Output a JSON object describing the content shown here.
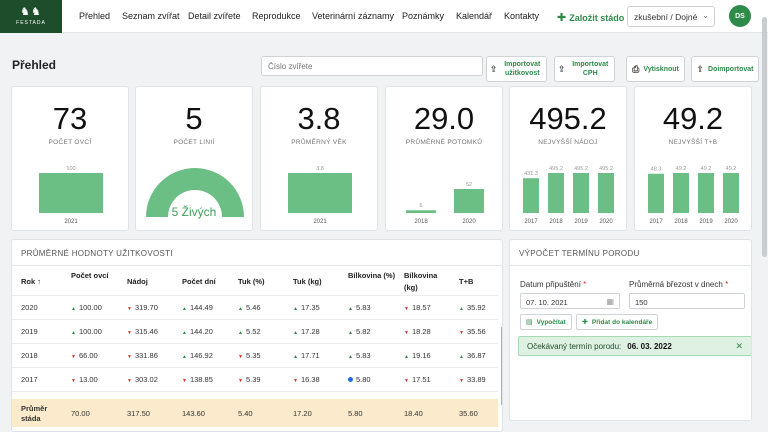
{
  "brand": {
    "name": "FESTADA"
  },
  "nav": {
    "items": [
      "Přehled",
      "Seznam zvířat",
      "Detail zvířete",
      "Reprodukce",
      "Veterinární záznamy",
      "Poznámky",
      "Kalendář",
      "Kontakty"
    ],
    "add_label": "Založit stádo",
    "herd_select": "zkušební / Dojné",
    "avatar": "DS"
  },
  "toolbar": {
    "title": "Přehled",
    "search_placeholder": "Číslo zvířete",
    "buttons": [
      "Importovat užitkovost",
      "Importovat CPH",
      "Vytisknout",
      "Doimportovat"
    ]
  },
  "kpis": [
    {
      "value": "73",
      "label": "POČET OVCÍ"
    },
    {
      "value": "5",
      "label": "POČET LINIÍ"
    },
    {
      "value": "3.8",
      "label": "PRŮMĚRNÝ VĚK"
    },
    {
      "value": "29.0",
      "label": "PRŮMĚRNÉ POTOMKŮ"
    },
    {
      "value": "495.2",
      "label": "NEJVYŠŠÍ NÁDOJ"
    },
    {
      "value": "49.2",
      "label": "NEJVYŠŠÍ T+B"
    }
  ],
  "gauge": {
    "text": "5 Živých",
    "fraction": 1.0
  },
  "chart_data": [
    {
      "type": "bar",
      "title": "",
      "categories": [
        "2021"
      ],
      "values": [
        100
      ],
      "ylim": [
        0,
        100
      ]
    },
    {
      "type": "bar",
      "title": "",
      "categories": [
        "2021"
      ],
      "values": [
        3.8
      ],
      "ylim": [
        0,
        3.8
      ]
    },
    {
      "type": "bar",
      "title": "",
      "categories": [
        "2018",
        "2020"
      ],
      "values": [
        6,
        52
      ],
      "ylim": [
        0,
        52
      ]
    },
    {
      "type": "bar",
      "title": "",
      "categories": [
        "2017",
        "2018",
        "2019",
        "2020"
      ],
      "values": [
        431.3,
        495.2,
        495.2,
        495.2
      ],
      "ylim": [
        0,
        495.2
      ]
    },
    {
      "type": "bar",
      "title": "",
      "categories": [
        "2017",
        "2018",
        "2019",
        "2020"
      ],
      "values": [
        48.3,
        49.2,
        49.2,
        49.2
      ],
      "ylim": [
        0,
        49.2
      ]
    }
  ],
  "table": {
    "title": "PRŮMĚRNÉ HODNOTY UŽITKOVOSTI",
    "headers": [
      "Rok ↑",
      "Počet ovcí",
      "Nádoj",
      "Počet dní",
      "Tuk (%)",
      "Tuk (kg)",
      "Bílkovina (%)",
      "Bílkovina (kg)",
      "T+B"
    ],
    "rows": [
      {
        "cells": [
          "2020",
          "100.00",
          "319.70",
          "144.49",
          "5.46",
          "17.35",
          "5.83",
          "18.57",
          "35.92"
        ],
        "trend": [
          "",
          "up",
          "down",
          "up",
          "up",
          "up",
          "up",
          "down",
          "up"
        ]
      },
      {
        "cells": [
          "2019",
          "100.00",
          "315.46",
          "144.20",
          "5.52",
          "17.28",
          "5.82",
          "18.28",
          "35.56"
        ],
        "trend": [
          "",
          "up",
          "down",
          "up",
          "up",
          "up",
          "up",
          "down",
          "down"
        ]
      },
      {
        "cells": [
          "2018",
          "66.00",
          "331.86",
          "146.92",
          "5.35",
          "17.71",
          "5.83",
          "19.16",
          "36.87"
        ],
        "trend": [
          "",
          "down",
          "down",
          "up",
          "down",
          "up",
          "up",
          "up",
          "up"
        ]
      },
      {
        "cells": [
          "2017",
          "13.00",
          "303.02",
          "138.85",
          "5.39",
          "16.38",
          "5.80",
          "17.51",
          "33.89"
        ],
        "trend": [
          "",
          "down",
          "down",
          "down",
          "down",
          "down",
          "dot",
          "down",
          "down"
        ]
      }
    ],
    "average": {
      "label": "Průměr stáda",
      "cells": [
        "70.00",
        "317.50",
        "143.60",
        "5.40",
        "17.20",
        "5.80",
        "18.40",
        "35.60"
      ]
    }
  },
  "calc": {
    "title": "VÝPOČET TERMÍNU PORODU",
    "date_label": "Datum připuštění",
    "date_value": "07. 10. 2021",
    "gest_label": "Průměrná březost v dnech",
    "gest_value": "150",
    "calc_button": "Vypočítat",
    "calendar_button": "Přidat do kalendáře",
    "result_label": "Očekávaný termín porodu:",
    "result_value": "06. 03. 2022"
  },
  "colors": {
    "accent": "#2e8b4a",
    "bar": "#6cbf84",
    "up": "#2e8b4a",
    "down": "#d9302c",
    "average_row": "#fbeacb"
  }
}
